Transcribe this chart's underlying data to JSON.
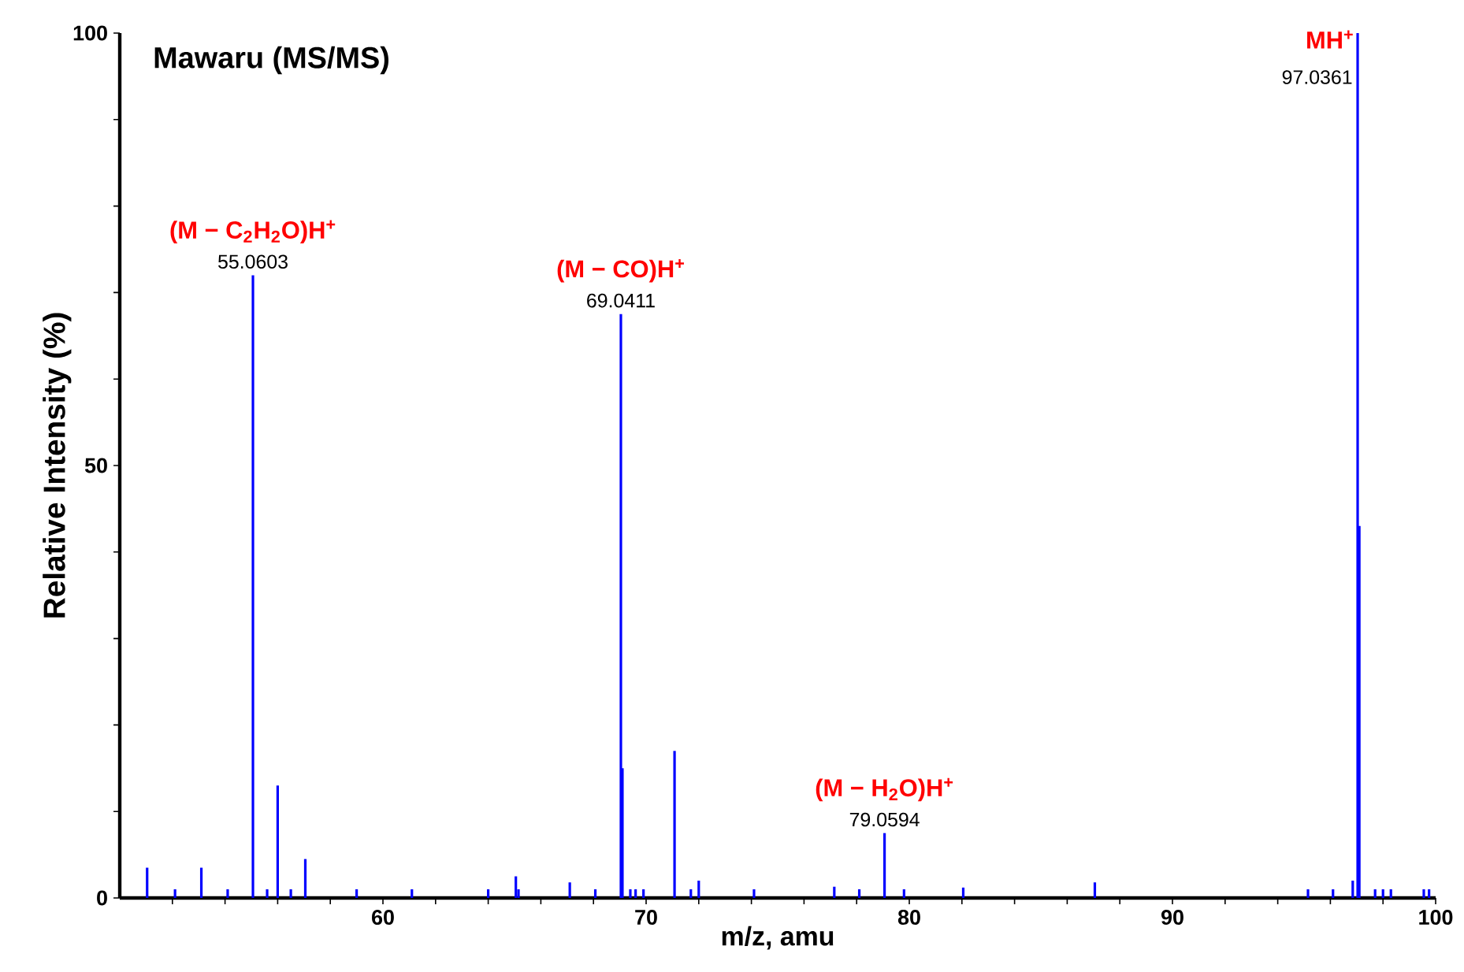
{
  "chart_data": {
    "type": "bar",
    "title": "Mawaru (MS/MS)",
    "xlabel": "m/z, amu",
    "ylabel": "Relative Intensity (%)",
    "x": [
      51.04,
      52.1,
      53.1,
      54.1,
      55.0603,
      55.6,
      56.0,
      56.5,
      57.05,
      59.0,
      61.1,
      64.0,
      65.05,
      65.15,
      67.1,
      68.07,
      69.0411,
      69.1,
      69.4,
      69.6,
      69.9,
      71.08,
      71.7,
      72.0,
      74.1,
      77.15,
      78.1,
      79.0594,
      79.8,
      82.05,
      87.05,
      95.15,
      96.1,
      96.85,
      97.0361,
      97.1,
      97.7,
      98.0,
      98.3,
      99.55,
      99.75
    ],
    "values": [
      3.5,
      1,
      3.5,
      1,
      72,
      1,
      13,
      1,
      4.5,
      1,
      1,
      1,
      2.5,
      1,
      1.8,
      1,
      67.5,
      15,
      1,
      1,
      1,
      17,
      1,
      2,
      1,
      1.3,
      1,
      7.5,
      1,
      1.2,
      1.8,
      1,
      1,
      2,
      100,
      43,
      1,
      1,
      1,
      1,
      1
    ],
    "color": "#0000ff",
    "xlim": [
      50,
      100
    ],
    "xticks": [
      {
        "value": 52,
        "label": null
      },
      {
        "value": 54,
        "label": null
      },
      {
        "value": 56,
        "label": null
      },
      {
        "value": 58,
        "label": null
      },
      60,
      {
        "value": 62,
        "label": null
      },
      {
        "value": 64,
        "label": null
      },
      {
        "value": 66,
        "label": null
      },
      {
        "value": 68,
        "label": null
      },
      70,
      {
        "value": 72,
        "label": null
      },
      {
        "value": 74,
        "label": null
      },
      {
        "value": 76,
        "label": null
      },
      {
        "value": 78,
        "label": null
      },
      80,
      {
        "value": 82,
        "label": null
      },
      {
        "value": 84,
        "label": null
      },
      {
        "value": 86,
        "label": null
      },
      {
        "value": 88,
        "label": null
      },
      90,
      {
        "value": 92,
        "label": null
      },
      {
        "value": 94,
        "label": null
      },
      {
        "value": 96,
        "label": null
      },
      {
        "value": 98,
        "label": null
      },
      100
    ],
    "ylim": [
      0,
      100
    ],
    "yticks": [
      0,
      {
        "value": 10,
        "label": null
      },
      {
        "value": 20,
        "label": null
      },
      {
        "value": 30,
        "label": null
      },
      {
        "value": 40,
        "label": null
      },
      50,
      {
        "value": 60,
        "label": null
      },
      {
        "value": 70,
        "label": null
      },
      {
        "value": 80,
        "label": null
      },
      {
        "value": 90,
        "label": null
      },
      100
    ],
    "annotations": [
      {
        "text": "(M − C$_{2}$H$_{2}$O)H$^{+}$",
        "x": 55.0603,
        "y": 72
      },
      {
        "text": "55.0603",
        "x": 55.0603,
        "y": 72
      },
      {
        "text": "(M − CO)H$^{+}$",
        "x": 69.0411,
        "y": 67.5
      },
      {
        "text": "69.0411",
        "x": 69.0411,
        "y": 67.5
      },
      {
        "text": "(M − H$_{2}$O)H$^{+}$",
        "x": 79.0594,
        "y": 7.5
      },
      {
        "text": "79.0594",
        "x": 79.0594,
        "y": 7.5
      },
      {
        "text": "MH$^{+}$",
        "x": 97.0361,
        "y": 100
      },
      {
        "text": "97.0361",
        "x": 97.0361,
        "y": 100
      }
    ]
  }
}
